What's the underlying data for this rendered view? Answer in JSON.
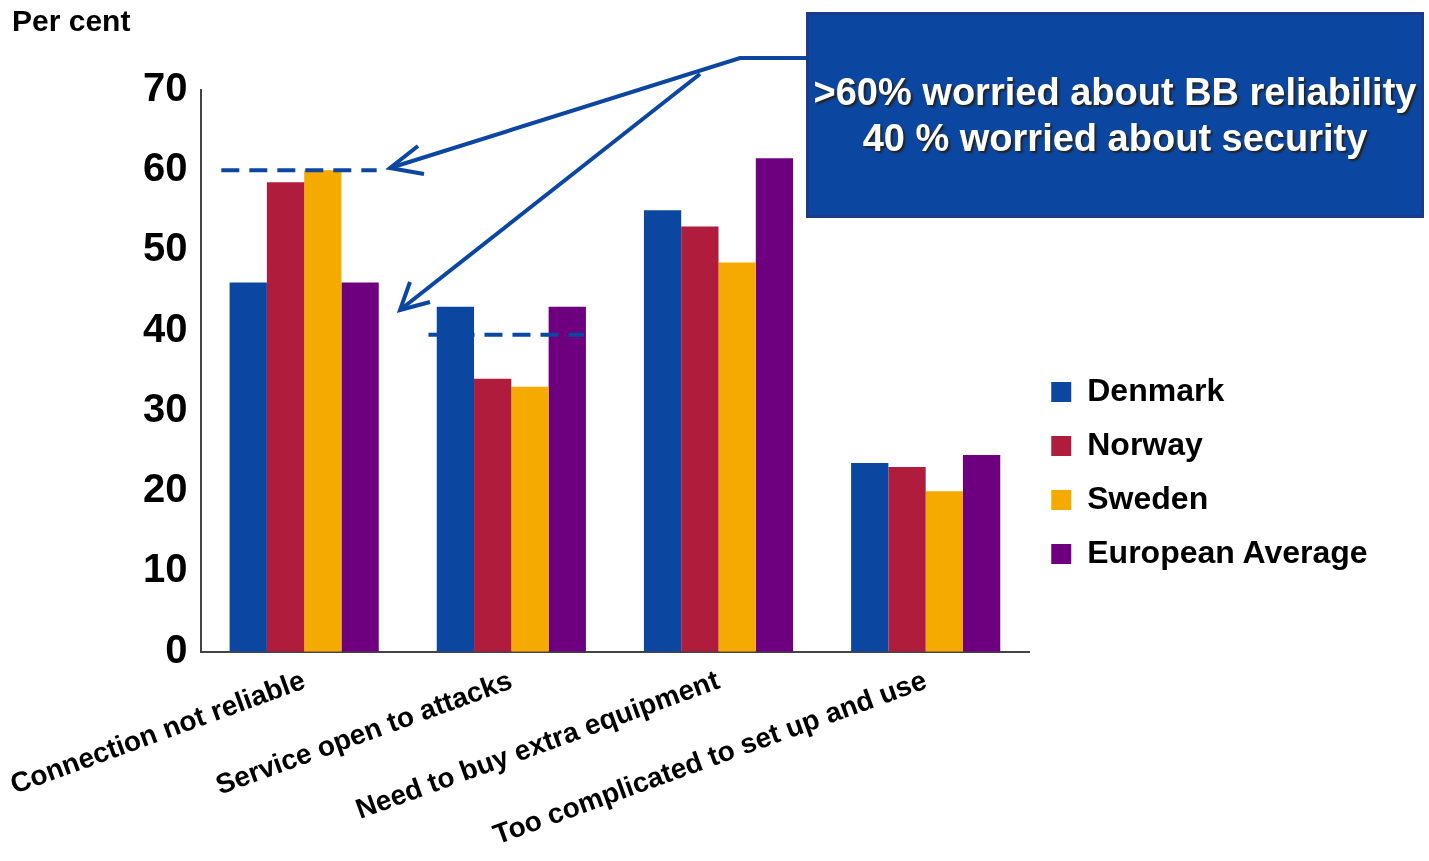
{
  "chart_data": {
    "type": "bar",
    "ylabel": "Per cent",
    "categories": [
      "Connection not reliable",
      "Service open to attacks",
      "Need to buy extra equipment",
      "Too complicated to set up and use"
    ],
    "series": [
      {
        "name": "Denmark",
        "color": "#0b47a0",
        "values": [
          46,
          43,
          55,
          23.5
        ]
      },
      {
        "name": "Norway",
        "color": "#b01c3c",
        "values": [
          58.5,
          34,
          53,
          23
        ]
      },
      {
        "name": "Sweden",
        "color": "#f4aa00",
        "values": [
          60,
          33,
          48.5,
          20
        ]
      },
      {
        "name": "European Average",
        "color": "#6e0080",
        "values": [
          46,
          43,
          61.5,
          24.5
        ]
      }
    ],
    "ylim": [
      0,
      70
    ],
    "yticks": [
      0,
      10,
      20,
      30,
      40,
      50,
      60,
      70
    ],
    "grid": false,
    "legend": "right",
    "ref_lines": [
      {
        "axis": "y",
        "value": 60,
        "color": "#0b47a0",
        "line_style": "dashed"
      },
      {
        "axis": "y",
        "value": 39.5,
        "color": "#0b47a0",
        "line_style": "dashed"
      }
    ],
    "annotations": [
      ">60% worried about BB reliability",
      "40 % worried about security"
    ]
  }
}
